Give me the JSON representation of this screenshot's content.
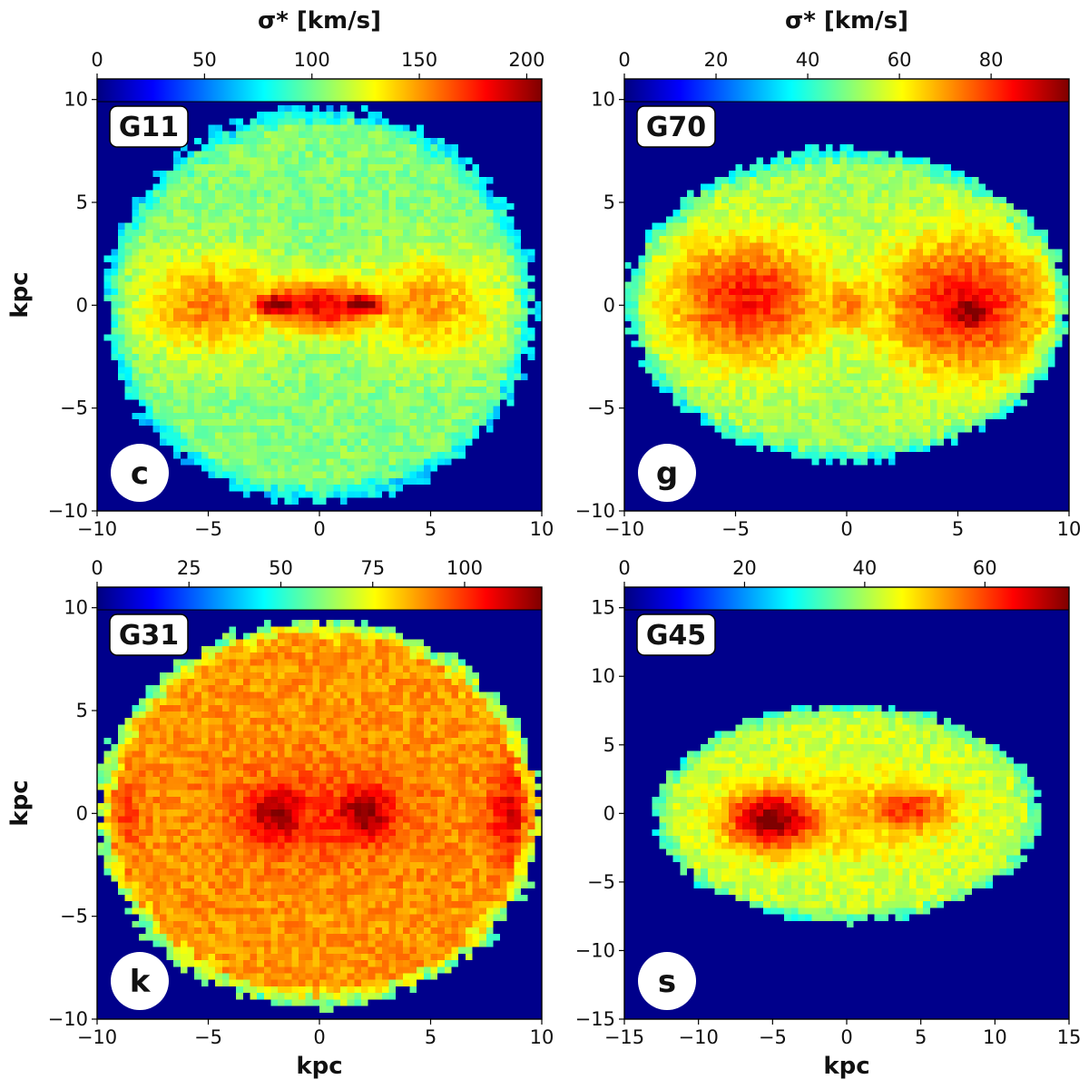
{
  "colors": {
    "map_background": "#00008b",
    "frame": "#000000",
    "label_box": "#ffffff"
  },
  "colormap": [
    "#00007f",
    "#0000ff",
    "#007fff",
    "#00ffff",
    "#7fff7f",
    "#ffff00",
    "#ff7f00",
    "#ff0000",
    "#7f0000"
  ],
  "chart_data": [
    {
      "type": "heatmap",
      "title": "G11",
      "panel_letter": "c",
      "colorbar_title": "σ* [km/s]",
      "colorbar_ticks": [
        "0",
        "50",
        "100",
        "150",
        "200"
      ],
      "colorbar_range": [
        0,
        207
      ],
      "xlabel": "",
      "ylabel": "kpc",
      "xlim": [
        -10,
        10
      ],
      "ylim": [
        -10,
        11
      ],
      "xticks": [
        "−10",
        "−5",
        "0",
        "5",
        "10"
      ],
      "yticks": [
        "−10",
        "−5",
        "0",
        "5",
        "10"
      ],
      "disk": {
        "center": [
          0.0,
          0.0
        ],
        "radius_x": 9.7,
        "radius_y": 9.6,
        "edge_value": 70,
        "body_value": 105
      },
      "features": [
        {
          "x": -4.8,
          "y": 0.0,
          "wx": 3.3,
          "wy": 2.4,
          "value": 155
        },
        {
          "x": 4.8,
          "y": 0.0,
          "wx": 3.3,
          "wy": 2.4,
          "value": 150
        },
        {
          "x": 0.0,
          "y": 0.0,
          "wx": 3.2,
          "wy": 1.4,
          "value": 185
        },
        {
          "x": -1.9,
          "y": 0.0,
          "wx": 1.3,
          "wy": 0.7,
          "value": 207
        },
        {
          "x": 1.9,
          "y": 0.0,
          "wx": 1.3,
          "wy": 0.7,
          "value": 207
        }
      ]
    },
    {
      "type": "heatmap",
      "title": "G70",
      "panel_letter": "g",
      "colorbar_title": "σ* [km/s]",
      "colorbar_ticks": [
        "0",
        "20",
        "40",
        "60",
        "80"
      ],
      "colorbar_range": [
        0,
        97
      ],
      "xlabel": "",
      "ylabel": "",
      "xlim": [
        -10,
        10
      ],
      "ylim": [
        -10,
        11
      ],
      "xticks": [
        "−10",
        "−5",
        "0",
        "5",
        "10"
      ],
      "yticks": [
        "−10",
        "−5",
        "0",
        "5",
        "10"
      ],
      "disk": {
        "center": [
          0.0,
          0.0
        ],
        "radius_x": 9.9,
        "radius_y": 7.6,
        "edge_value": 30,
        "body_value": 52
      },
      "features": [
        {
          "x": -4.5,
          "y": 0.3,
          "wx": 3.6,
          "wy": 3.0,
          "value": 83
        },
        {
          "x": 5.3,
          "y": 0.0,
          "wx": 3.8,
          "wy": 3.3,
          "value": 85
        },
        {
          "x": 5.6,
          "y": -0.3,
          "wx": 1.6,
          "wy": 1.4,
          "value": 97
        },
        {
          "x": 0.0,
          "y": 0.0,
          "wx": 2.0,
          "wy": 1.5,
          "value": 72
        }
      ]
    },
    {
      "type": "heatmap",
      "title": "G31",
      "panel_letter": "k",
      "colorbar_title": "",
      "colorbar_ticks": [
        "0",
        "25",
        "50",
        "75",
        "100"
      ],
      "colorbar_range": [
        0,
        121
      ],
      "xlabel": "kpc",
      "ylabel": "kpc",
      "xlim": [
        -10,
        10
      ],
      "ylim": [
        -10,
        11
      ],
      "xticks": [
        "−10",
        "−5",
        "0",
        "5",
        "10"
      ],
      "yticks": [
        "−10",
        "−5",
        "0",
        "5",
        "10"
      ],
      "disk": {
        "center": [
          0.0,
          0.0
        ],
        "radius_x": 10.0,
        "radius_y": 9.4,
        "edge_value": 60,
        "body_value": 88
      },
      "features": [
        {
          "x": -1.9,
          "y": 0.0,
          "wx": 1.5,
          "wy": 1.5,
          "value": 118
        },
        {
          "x": 2.0,
          "y": 0.0,
          "wx": 1.5,
          "wy": 1.5,
          "value": 118
        },
        {
          "x": 8.8,
          "y": 0.0,
          "wx": 1.2,
          "wy": 2.2,
          "value": 110
        },
        {
          "x": -9.0,
          "y": 0.0,
          "wx": 1.2,
          "wy": 2.0,
          "value": 98
        },
        {
          "x": 0.0,
          "y": 0.0,
          "wx": 4.5,
          "wy": 2.5,
          "value": 100
        }
      ]
    },
    {
      "type": "heatmap",
      "title": "G45",
      "panel_letter": "s",
      "colorbar_title": "",
      "colorbar_ticks": [
        "0",
        "20",
        "40",
        "60"
      ],
      "colorbar_range": [
        0,
        74
      ],
      "xlabel": "kpc",
      "ylabel": "",
      "xlim": [
        -15,
        15
      ],
      "ylim": [
        -15,
        16.5
      ],
      "xticks": [
        "−15",
        "−10",
        "−5",
        "0",
        "5",
        "10",
        "15"
      ],
      "yticks": [
        "−15",
        "−10",
        "−5",
        "0",
        "5",
        "10",
        "15"
      ],
      "disk": {
        "center": [
          0.0,
          0.0
        ],
        "radius_x": 13.0,
        "radius_y": 7.9,
        "edge_value": 20,
        "body_value": 42
      },
      "features": [
        {
          "x": -5.0,
          "y": -0.5,
          "wx": 3.2,
          "wy": 2.2,
          "value": 74
        },
        {
          "x": 4.0,
          "y": 0.3,
          "wx": 3.2,
          "wy": 1.8,
          "value": 62
        },
        {
          "x": 0.0,
          "y": 0.0,
          "wx": 6.5,
          "wy": 3.3,
          "value": 52
        }
      ]
    }
  ]
}
